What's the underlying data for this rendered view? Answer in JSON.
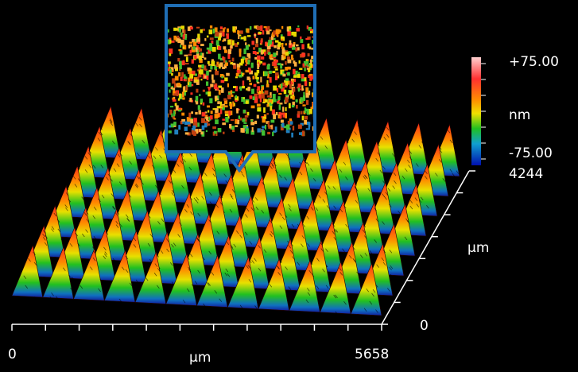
{
  "color_scale": {
    "max": "+75.00",
    "unit": "nm",
    "min": "-75.00"
  },
  "x_axis": {
    "start": "0",
    "label": "µm",
    "end": "5658"
  },
  "y_axis": {
    "end": "4244",
    "label": "µm",
    "start": "0"
  }
}
